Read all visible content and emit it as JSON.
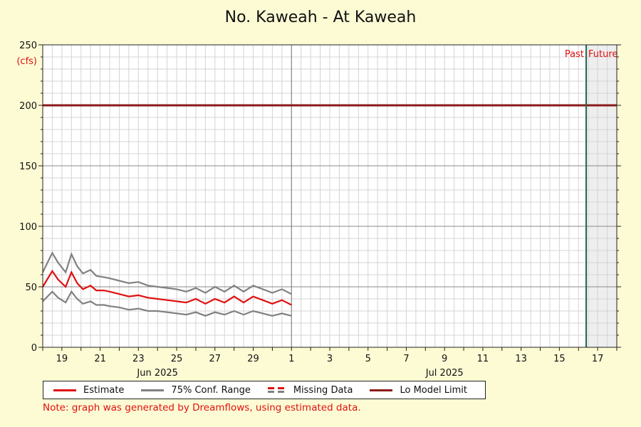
{
  "chart_data": {
    "type": "line",
    "title": "No. Kaweah - At Kaweah",
    "ylabel_top": "250",
    "yunit": "(cfs)",
    "ylim": [
      0,
      250
    ],
    "yticks": [
      0,
      50,
      100,
      150,
      200,
      250
    ],
    "x_start": "2025-06-18",
    "x_end": "2025-07-18",
    "xtick_labels": [
      {
        "date": "2025-06-19",
        "label": "19"
      },
      {
        "date": "2025-06-21",
        "label": "21"
      },
      {
        "date": "2025-06-23",
        "label": "23"
      },
      {
        "date": "2025-06-25",
        "label": "25"
      },
      {
        "date": "2025-06-27",
        "label": "27"
      },
      {
        "date": "2025-06-29",
        "label": "29"
      },
      {
        "date": "2025-07-01",
        "label": "1"
      },
      {
        "date": "2025-07-03",
        "label": "3"
      },
      {
        "date": "2025-07-05",
        "label": "5"
      },
      {
        "date": "2025-07-07",
        "label": "7"
      },
      {
        "date": "2025-07-09",
        "label": "9"
      },
      {
        "date": "2025-07-11",
        "label": "11"
      },
      {
        "date": "2025-07-13",
        "label": "13"
      },
      {
        "date": "2025-07-15",
        "label": "15"
      },
      {
        "date": "2025-07-17",
        "label": "17"
      }
    ],
    "month_labels": [
      {
        "date": "2025-06-24",
        "label": "Jun 2025"
      },
      {
        "date": "2025-07-09",
        "label": "Jul 2025"
      }
    ],
    "month_divider": "2025-07-01",
    "now_date": "2025-07-16.4",
    "past_label": "Past",
    "future_label": "Future",
    "grid": true,
    "lo_model_limit": 200,
    "series": [
      {
        "name": "Estimate",
        "color": "#e01010",
        "x": [
          "2025-06-18",
          "2025-06-18.5",
          "2025-06-18.8",
          "2025-06-19.2",
          "2025-06-19.5",
          "2025-06-19.8",
          "2025-06-20.1",
          "2025-06-20.5",
          "2025-06-20.8",
          "2025-06-21.2",
          "2025-06-21.5",
          "2025-06-22",
          "2025-06-22.5",
          "2025-06-23",
          "2025-06-23.5",
          "2025-06-24",
          "2025-06-24.5",
          "2025-06-25",
          "2025-06-25.5",
          "2025-06-26",
          "2025-06-26.5",
          "2025-06-27",
          "2025-06-27.5",
          "2025-06-28",
          "2025-06-28.5",
          "2025-06-29",
          "2025-06-29.5",
          "2025-06-30",
          "2025-06-30.5",
          "2025-07-01"
        ],
        "values": [
          50,
          63,
          56,
          50,
          62,
          53,
          48,
          51,
          47,
          47,
          46,
          44,
          42,
          43,
          41,
          40,
          39,
          38,
          37,
          40,
          36,
          40,
          37,
          42,
          37,
          42,
          39,
          36,
          39,
          35
        ]
      },
      {
        "name": "75% Conf. Range",
        "color": "#808080",
        "x": [
          "2025-06-18",
          "2025-06-18.5",
          "2025-06-18.8",
          "2025-06-19.2",
          "2025-06-19.5",
          "2025-06-19.8",
          "2025-06-20.1",
          "2025-06-20.5",
          "2025-06-20.8",
          "2025-06-21.2",
          "2025-06-21.5",
          "2025-06-22",
          "2025-06-22.5",
          "2025-06-23",
          "2025-06-23.5",
          "2025-06-24",
          "2025-06-24.5",
          "2025-06-25",
          "2025-06-25.5",
          "2025-06-26",
          "2025-06-26.5",
          "2025-06-27",
          "2025-06-27.5",
          "2025-06-28",
          "2025-06-28.5",
          "2025-06-29",
          "2025-06-29.5",
          "2025-06-30",
          "2025-06-30.5",
          "2025-07-01"
        ],
        "upper": [
          62,
          78,
          70,
          62,
          77,
          67,
          61,
          64,
          59,
          58,
          57,
          55,
          53,
          54,
          51,
          50,
          49,
          48,
          46,
          49,
          45,
          50,
          46,
          51,
          46,
          51,
          48,
          45,
          48,
          44
        ],
        "lower": [
          38,
          46,
          41,
          37,
          46,
          40,
          36,
          38,
          35,
          35,
          34,
          33,
          31,
          32,
          30,
          30,
          29,
          28,
          27,
          29,
          26,
          29,
          27,
          30,
          27,
          30,
          28,
          26,
          28,
          26
        ]
      }
    ],
    "legend": [
      {
        "label": "Estimate",
        "color": "#e01010",
        "style": "solid"
      },
      {
        "label": "75% Conf. Range",
        "color": "#808080",
        "style": "solid"
      },
      {
        "label": "Missing Data",
        "color": "#e01010",
        "color2": "#808080",
        "style": "dashed"
      },
      {
        "label": "Lo Model Limit",
        "color": "#8b1a1a",
        "style": "solid"
      }
    ],
    "note": "Note: graph was generated by Dreamflows, using estimated data."
  }
}
